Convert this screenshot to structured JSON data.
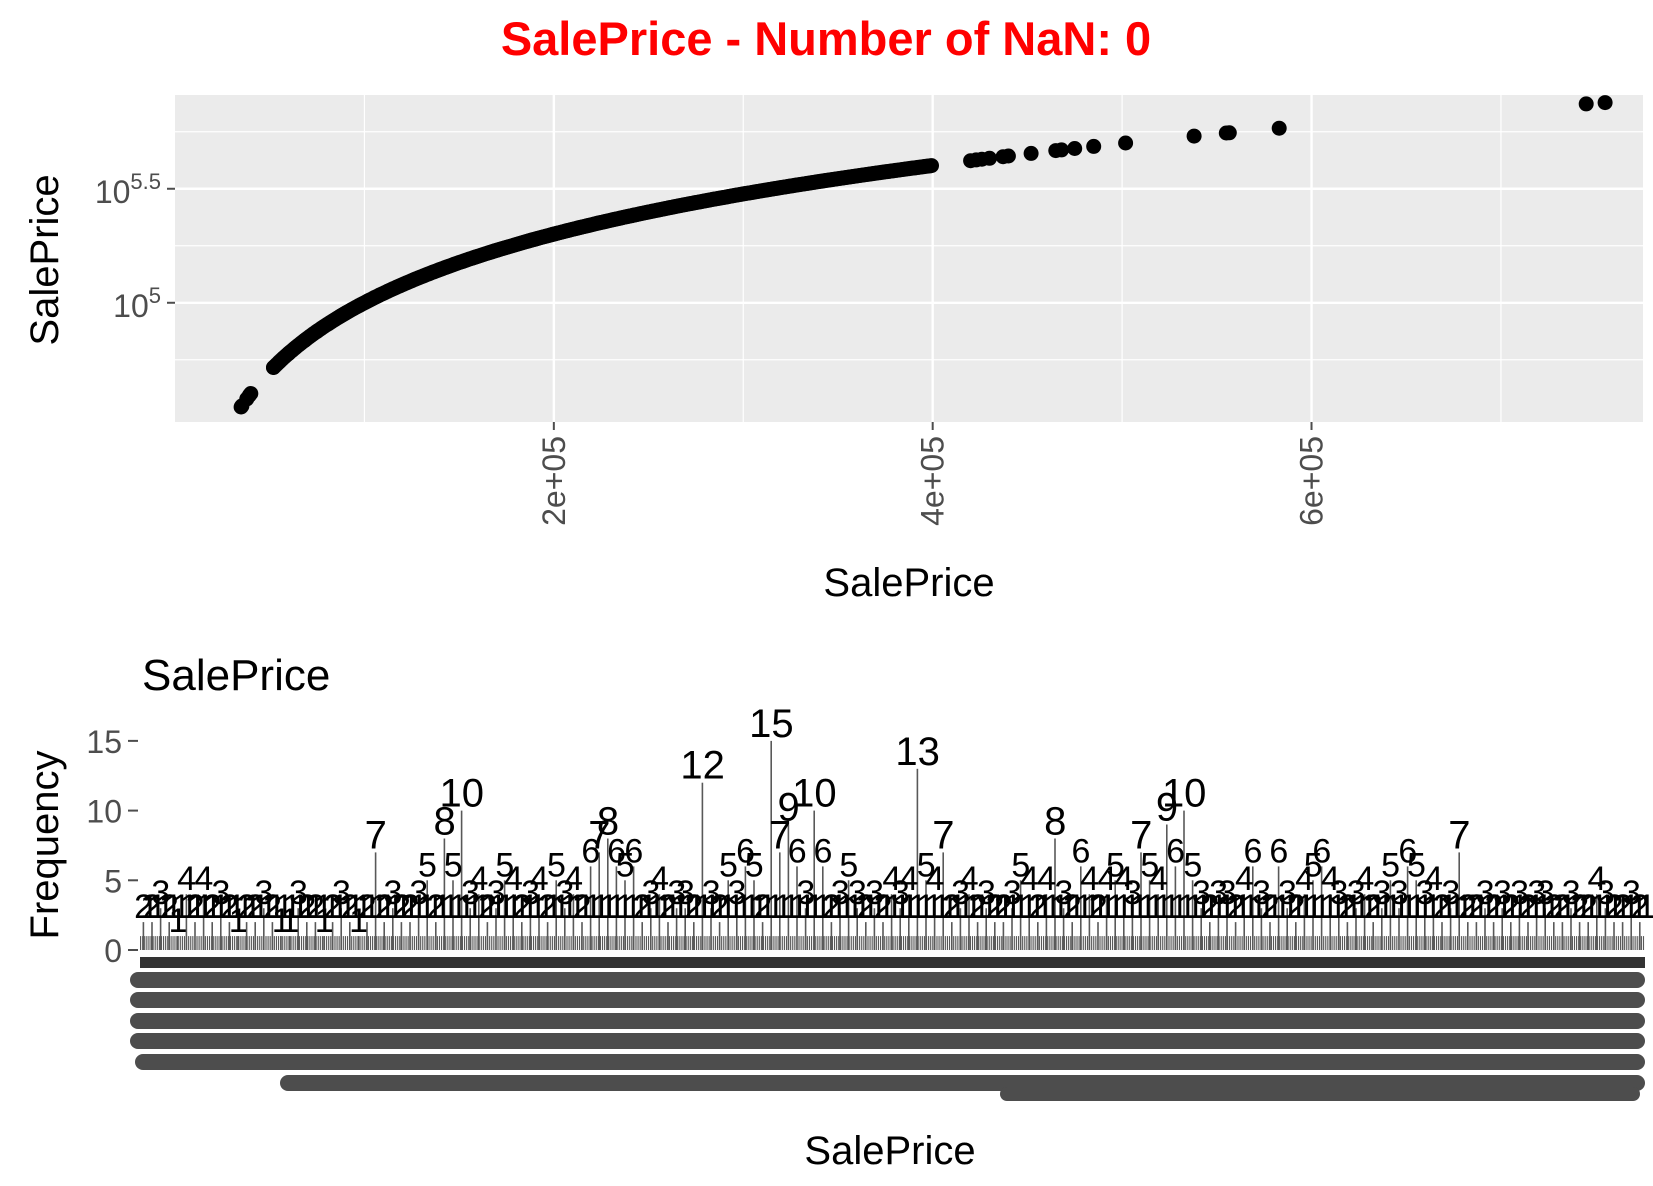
{
  "figure_title": "SalePrice - Number of NaN: 0",
  "colors": {
    "title": "#ff0000",
    "panel": "#ebebeb",
    "grid": "#ffffff",
    "points": "#000000",
    "ticks": "#4d4d4d",
    "bars": "#595959",
    "text": "#000000"
  },
  "chart_data": [
    {
      "type": "scatter",
      "title": "",
      "xlabel": "SalePrice",
      "ylabel": "SalePrice",
      "x_scale": "linear",
      "y_scale": "log10",
      "xlim": [
        0,
        775000
      ],
      "ylim": [
        30000,
        815000
      ],
      "x_ticks": [
        {
          "value": 200000,
          "label": "2e+05"
        },
        {
          "value": 400000,
          "label": "4e+05"
        },
        {
          "value": 600000,
          "label": "6e+05"
        }
      ],
      "y_ticks": [
        {
          "value": 100000,
          "label_base": "10",
          "label_exp": "5"
        },
        {
          "value": 316228,
          "label_base": "10",
          "label_exp": "5.5"
        }
      ],
      "grid": true,
      "points_continuous_range": [
        52000,
        400000
      ],
      "points": [
        [
          34900,
          34900
        ],
        [
          35311,
          35311
        ],
        [
          37900,
          37900
        ],
        [
          39300,
          39300
        ],
        [
          40000,
          40000
        ],
        [
          52000,
          52000
        ],
        [
          55000,
          55000
        ],
        [
          60000,
          60000
        ],
        [
          68400,
          68400
        ],
        [
          75000,
          75000
        ],
        [
          420000,
          420000
        ],
        [
          423000,
          423000
        ],
        [
          426000,
          426000
        ],
        [
          430000,
          430000
        ],
        [
          437154,
          437154
        ],
        [
          440000,
          440000
        ],
        [
          451950,
          451950
        ],
        [
          465000,
          465000
        ],
        [
          468000,
          468000
        ],
        [
          475000,
          475000
        ],
        [
          485000,
          485000
        ],
        [
          501837,
          501837
        ],
        [
          538000,
          538000
        ],
        [
          555000,
          555000
        ],
        [
          556581,
          556581
        ],
        [
          582933,
          582933
        ],
        [
          745000,
          745000
        ],
        [
          755000,
          755000
        ]
      ]
    },
    {
      "type": "bar",
      "title": "SalePrice",
      "xlabel": "SalePrice",
      "ylabel": "Frequency",
      "ylim": [
        0,
        17
      ],
      "y_ticks": [
        0,
        5,
        10,
        15
      ],
      "grid": false,
      "categories_note": "one bar per distinct SalePrice value; tick labels overlap into unreadable rows",
      "values": [
        2,
        2,
        3,
        2,
        1,
        4,
        2,
        4,
        2,
        3,
        2,
        1,
        2,
        2,
        3,
        2,
        1,
        1,
        3,
        2,
        2,
        1,
        2,
        3,
        2,
        1,
        2,
        7,
        2,
        3,
        2,
        2,
        3,
        5,
        2,
        8,
        5,
        10,
        3,
        4,
        2,
        3,
        5,
        4,
        2,
        3,
        4,
        2,
        5,
        3,
        4,
        2,
        6,
        7,
        8,
        6,
        5,
        6,
        2,
        3,
        4,
        2,
        3,
        3,
        2,
        12,
        3,
        2,
        5,
        3,
        6,
        5,
        2,
        15,
        7,
        9,
        6,
        3,
        10,
        6,
        2,
        3,
        5,
        3,
        2,
        3,
        2,
        4,
        3,
        4,
        13,
        5,
        4,
        7,
        2,
        3,
        4,
        2,
        3,
        2,
        2,
        3,
        5,
        4,
        2,
        4,
        8,
        3,
        2,
        6,
        4,
        2,
        4,
        5,
        4,
        3,
        7,
        5,
        4,
        9,
        6,
        10,
        5,
        3,
        2,
        3,
        3,
        2,
        4,
        6,
        3,
        2,
        6,
        3,
        2,
        4,
        5,
        6,
        4,
        3,
        2,
        3,
        4,
        2,
        3,
        5,
        3,
        6,
        5,
        3,
        4,
        2,
        3,
        7,
        2,
        2,
        3,
        2,
        3,
        2,
        3,
        2,
        3,
        3,
        2,
        2,
        3,
        2,
        2,
        4,
        3,
        2,
        2,
        3,
        2
      ],
      "labels_shown": [
        "2",
        "3",
        "4",
        "5",
        "6",
        "7",
        "8",
        "9",
        "10",
        "12",
        "13",
        "15"
      ]
    }
  ]
}
